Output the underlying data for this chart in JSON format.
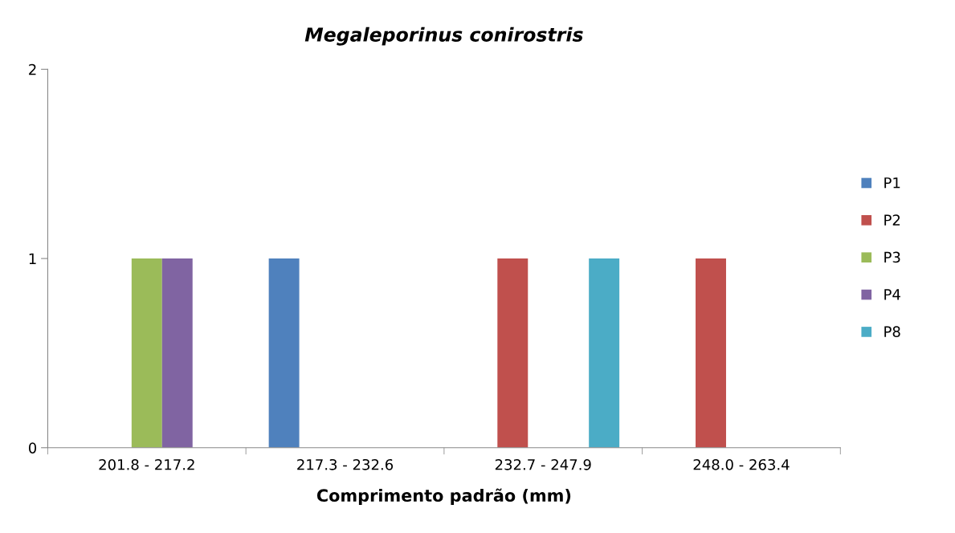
{
  "chart_data": {
    "type": "bar",
    "title": "Megaleporinus conirostris",
    "xlabel": "Comprimento padrão (mm)",
    "categories": [
      "201.8 - 217.2",
      "217.3 - 232.6",
      "232.7 - 247.9",
      "248.0 - 263.4"
    ],
    "series": [
      {
        "name": "P1",
        "color": "#4f81bd",
        "values": [
          0,
          1,
          0,
          0
        ]
      },
      {
        "name": "P2",
        "color": "#c0504d",
        "values": [
          0,
          0,
          1,
          1
        ]
      },
      {
        "name": "P3",
        "color": "#9bbb59",
        "values": [
          1,
          0,
          0,
          0
        ]
      },
      {
        "name": "P4",
        "color": "#8064a2",
        "values": [
          1,
          0,
          0,
          0
        ]
      },
      {
        "name": "P8",
        "color": "#4bacc6",
        "values": [
          0,
          0,
          1,
          0
        ]
      }
    ],
    "ylim": [
      0,
      2
    ],
    "yticks": [
      0,
      1,
      2
    ],
    "grid": false,
    "legend": "right"
  }
}
